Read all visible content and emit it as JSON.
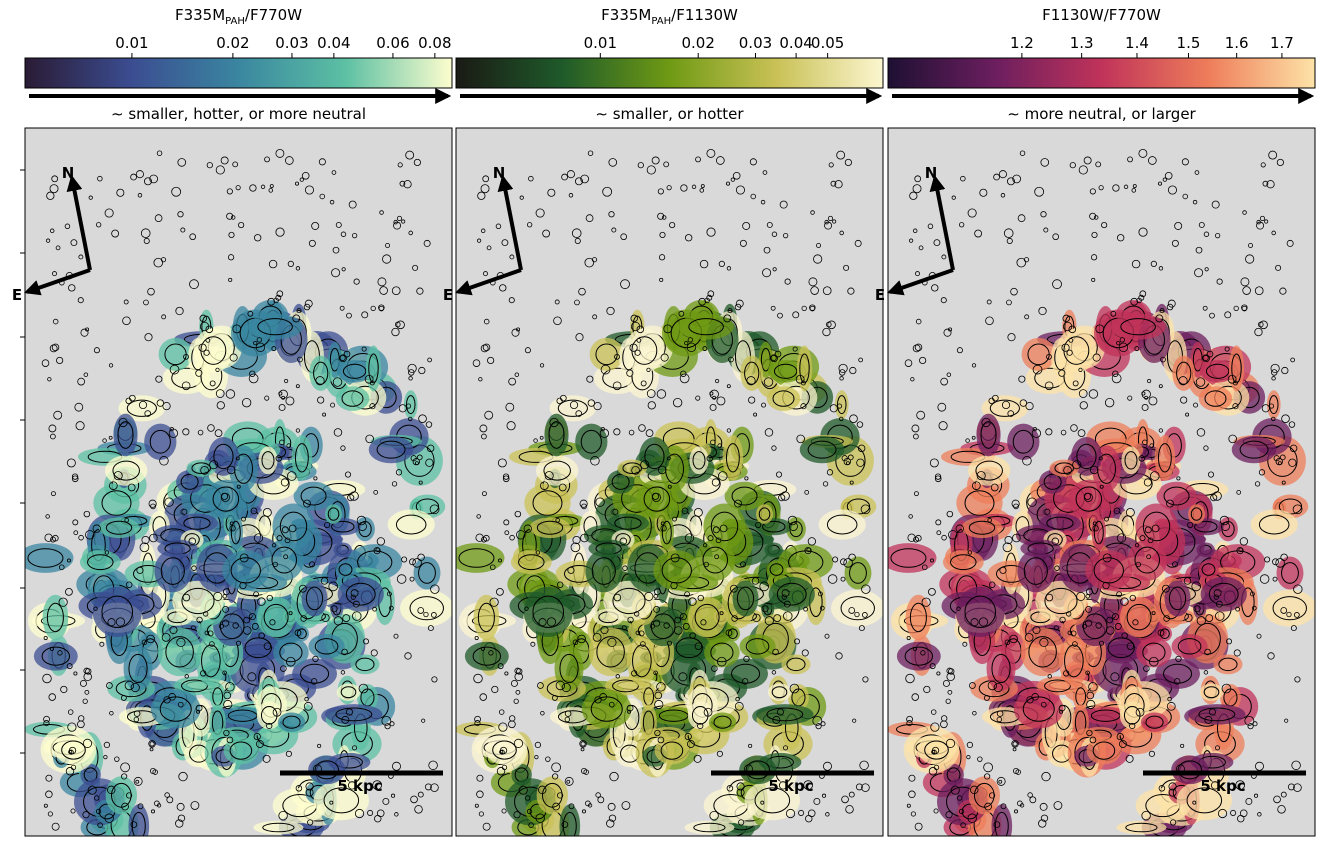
{
  "panels": [
    {
      "title": {
        "main": "F335M",
        "sub": "PAH",
        "rest": "/F770W"
      },
      "colorbar": {
        "scale": "log",
        "lim": [
          0.0048,
          0.09
        ],
        "ticks": [
          0.01,
          0.02,
          0.03,
          0.04,
          0.06,
          0.08
        ],
        "colors": [
          "#2a1b35",
          "#3b4d91",
          "#3a86a0",
          "#5cc0a3",
          "#fdfdce"
        ]
      },
      "arrow_label": "∼ smaller, hotter, or more neutral",
      "compass": {
        "north": "N",
        "east": "E"
      },
      "scale_bar": "5 kpc"
    },
    {
      "title": {
        "main": "F335M",
        "sub": "PAH",
        "rest": "/F1130W"
      },
      "colorbar": {
        "scale": "log",
        "lim": [
          0.0036,
          0.074
        ],
        "ticks": [
          0.01,
          0.02,
          0.03,
          0.04,
          0.05
        ],
        "colors": [
          "#1a1a14",
          "#1f5a2a",
          "#6f9a14",
          "#c9c156",
          "#fcf6d0"
        ]
      },
      "arrow_label": "∼ smaller, or hotter",
      "compass": {
        "north": "N",
        "east": "E"
      },
      "scale_bar": "5 kpc"
    },
    {
      "title": {
        "main": "F1130W/F770W",
        "sub": "",
        "rest": ""
      },
      "colorbar": {
        "scale": "log",
        "lim": [
          1.003,
          1.777
        ],
        "ticks": [
          1.2,
          1.3,
          1.4,
          1.5,
          1.6,
          1.7
        ],
        "colors": [
          "#1e1033",
          "#6b1e5e",
          "#c0335a",
          "#ee7d5a",
          "#fde3a7"
        ]
      },
      "arrow_label": "∼ more neutral, or larger",
      "compass": {
        "north": "N",
        "east": "E"
      },
      "scale_bar": "5 kpc"
    }
  ]
}
